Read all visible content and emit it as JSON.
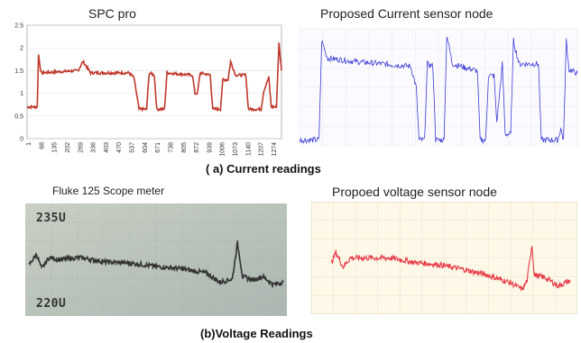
{
  "captions": {
    "current": "( a) Current readings",
    "voltage": "(b)Voltage Readings"
  },
  "chart_data": [
    {
      "type": "line",
      "title": "SPC pro",
      "color": "#c0392b",
      "ylim": [
        0,
        2.5
      ],
      "y_ticks": [
        "0",
        "0.5",
        "1",
        "1.5",
        "2",
        "2.5"
      ],
      "x_ticks": [
        "1",
        "68",
        "135",
        "202",
        "269",
        "336",
        "403",
        "470",
        "537",
        "604",
        "671",
        "738",
        "805",
        "872",
        "939",
        "1006",
        "1073",
        "1140",
        "1207",
        "1274"
      ],
      "segments": [
        [
          0,
          0.7
        ],
        [
          0.04,
          0.7
        ],
        [
          0.045,
          1.85
        ],
        [
          0.055,
          1.45
        ],
        [
          0.2,
          1.5
        ],
        [
          0.22,
          1.7
        ],
        [
          0.25,
          1.45
        ],
        [
          0.4,
          1.45
        ],
        [
          0.42,
          1.35
        ],
        [
          0.44,
          0.65
        ],
        [
          0.47,
          0.65
        ],
        [
          0.48,
          1.45
        ],
        [
          0.5,
          1.4
        ],
        [
          0.51,
          0.65
        ],
        [
          0.54,
          0.65
        ],
        [
          0.55,
          1.45
        ],
        [
          0.65,
          1.4
        ],
        [
          0.66,
          1.0
        ],
        [
          0.67,
          1.0
        ],
        [
          0.68,
          1.45
        ],
        [
          0.72,
          1.4
        ],
        [
          0.73,
          0.65
        ],
        [
          0.76,
          0.65
        ],
        [
          0.77,
          1.3
        ],
        [
          0.79,
          1.3
        ],
        [
          0.8,
          1.7
        ],
        [
          0.82,
          1.4
        ],
        [
          0.86,
          1.4
        ],
        [
          0.87,
          0.65
        ],
        [
          0.92,
          0.65
        ],
        [
          0.93,
          1.05
        ],
        [
          0.95,
          1.35
        ],
        [
          0.96,
          0.7
        ],
        [
          0.98,
          0.7
        ],
        [
          0.99,
          2.1
        ],
        [
          1.0,
          1.5
        ]
      ]
    },
    {
      "type": "line",
      "title": "Proposed Current sensor node",
      "color": "#3a3ad6",
      "segments": [
        [
          0,
          0.05
        ],
        [
          0.07,
          0.05
        ],
        [
          0.08,
          0.9
        ],
        [
          0.1,
          0.75
        ],
        [
          0.2,
          0.72
        ],
        [
          0.4,
          0.68
        ],
        [
          0.42,
          0.5
        ],
        [
          0.43,
          0.05
        ],
        [
          0.45,
          0.05
        ],
        [
          0.46,
          0.7
        ],
        [
          0.48,
          0.68
        ],
        [
          0.49,
          0.05
        ],
        [
          0.52,
          0.05
        ],
        [
          0.53,
          0.95
        ],
        [
          0.55,
          0.7
        ],
        [
          0.64,
          0.64
        ],
        [
          0.65,
          0.05
        ],
        [
          0.67,
          0.05
        ],
        [
          0.68,
          0.6
        ],
        [
          0.7,
          0.6
        ],
        [
          0.71,
          0.2
        ],
        [
          0.73,
          0.7
        ],
        [
          0.74,
          0.1
        ],
        [
          0.76,
          0.1
        ],
        [
          0.77,
          0.9
        ],
        [
          0.79,
          0.7
        ],
        [
          0.86,
          0.7
        ],
        [
          0.87,
          0.05
        ],
        [
          0.93,
          0.05
        ],
        [
          0.94,
          0.15
        ],
        [
          0.95,
          0.05
        ],
        [
          0.96,
          0.9
        ],
        [
          0.97,
          0.65
        ],
        [
          1.0,
          0.62
        ]
      ]
    },
    {
      "type": "line",
      "title": "Fluke 125 Scope meter",
      "color": "#333333",
      "y_labels": [
        "235U",
        "220U"
      ],
      "segments": [
        [
          0,
          0.45
        ],
        [
          0.03,
          0.55
        ],
        [
          0.05,
          0.42
        ],
        [
          0.08,
          0.52
        ],
        [
          0.12,
          0.5
        ],
        [
          0.2,
          0.52
        ],
        [
          0.3,
          0.48
        ],
        [
          0.4,
          0.47
        ],
        [
          0.5,
          0.44
        ],
        [
          0.6,
          0.42
        ],
        [
          0.7,
          0.38
        ],
        [
          0.75,
          0.3
        ],
        [
          0.8,
          0.33
        ],
        [
          0.82,
          0.65
        ],
        [
          0.84,
          0.35
        ],
        [
          0.88,
          0.32
        ],
        [
          0.92,
          0.35
        ],
        [
          0.96,
          0.28
        ],
        [
          1.0,
          0.3
        ]
      ]
    },
    {
      "type": "line",
      "title": "Propoed voltage sensor node",
      "color": "#e63946",
      "segments": [
        [
          0,
          0.45
        ],
        [
          0.02,
          0.55
        ],
        [
          0.05,
          0.42
        ],
        [
          0.08,
          0.5
        ],
        [
          0.15,
          0.5
        ],
        [
          0.25,
          0.5
        ],
        [
          0.35,
          0.46
        ],
        [
          0.45,
          0.44
        ],
        [
          0.55,
          0.4
        ],
        [
          0.65,
          0.35
        ],
        [
          0.75,
          0.28
        ],
        [
          0.8,
          0.22
        ],
        [
          0.82,
          0.3
        ],
        [
          0.84,
          0.62
        ],
        [
          0.85,
          0.35
        ],
        [
          0.9,
          0.32
        ],
        [
          0.95,
          0.25
        ],
        [
          1.0,
          0.3
        ]
      ]
    }
  ]
}
